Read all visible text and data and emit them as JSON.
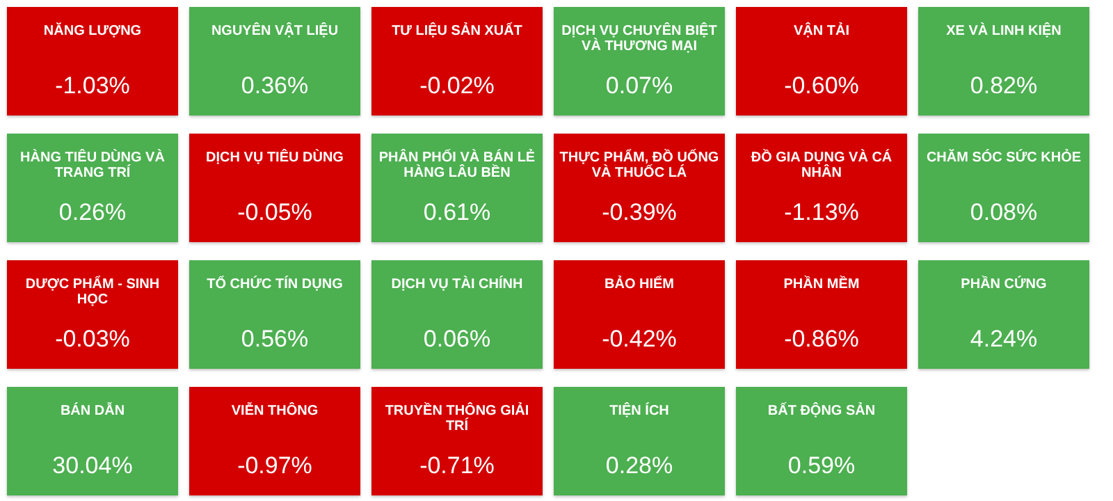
{
  "chart_data": {
    "type": "other",
    "categories": [
      "NĂNG LƯỢNG",
      "NGUYÊN VẬT LIỆU",
      "TƯ LIỆU SẢN XUẤT",
      "DỊCH VỤ CHUYÊN BIỆT VÀ THƯƠNG MẠI",
      "VẬN TẢI",
      "XE VÀ LINH KIỆN",
      "HÀNG TIÊU DÙNG VÀ TRANG TRÍ",
      "DỊCH VỤ TIÊU DÙNG",
      "PHÂN PHỐI VÀ BÁN LẺ HÀNG LÂU BỀN",
      "THỰC PHẨM, ĐỒ UỐNG VÀ THUỐC LÁ",
      "ĐỒ GIA DỤNG VÀ CÁ NHÂN",
      "CHĂM SÓC SỨC KHỎE",
      "DƯỢC PHẨM - SINH HỌC",
      "TỔ CHỨC TÍN DỤNG",
      "DỊCH VỤ TÀI CHÍNH",
      "BẢO HIỂM",
      "PHẦN MỀM",
      "PHẦN CỨNG",
      "BÁN DẪN",
      "VIỄN THÔNG",
      "TRUYỀN THÔNG GIẢI TRÍ",
      "TIỆN ÍCH",
      "BẤT ĐỘNG SẢN"
    ],
    "values": [
      -1.03,
      0.36,
      -0.02,
      0.07,
      -0.6,
      0.82,
      0.26,
      -0.05,
      0.61,
      -0.39,
      -1.13,
      0.08,
      -0.03,
      0.56,
      0.06,
      -0.42,
      -0.86,
      4.24,
      30.04,
      -0.97,
      -0.71,
      0.28,
      0.59
    ],
    "value_labels": [
      "-1.03%",
      "0.36%",
      "-0.02%",
      "0.07%",
      "-0.60%",
      "0.82%",
      "0.26%",
      "-0.05%",
      "0.61%",
      "-0.39%",
      "-1.13%",
      "0.08%",
      "-0.03%",
      "0.56%",
      "0.06%",
      "-0.42%",
      "-0.86%",
      "4.24%",
      "30.04%",
      "-0.97%",
      "-0.71%",
      "0.28%",
      "0.59%"
    ],
    "colors": [
      "#d40000",
      "#4caf50",
      "#d40000",
      "#4caf50",
      "#d40000",
      "#4caf50",
      "#4caf50",
      "#d40000",
      "#4caf50",
      "#d40000",
      "#d40000",
      "#4caf50",
      "#d40000",
      "#4caf50",
      "#4caf50",
      "#d40000",
      "#d40000",
      "#4caf50",
      "#4caf50",
      "#d40000",
      "#d40000",
      "#4caf50",
      "#4caf50"
    ]
  }
}
